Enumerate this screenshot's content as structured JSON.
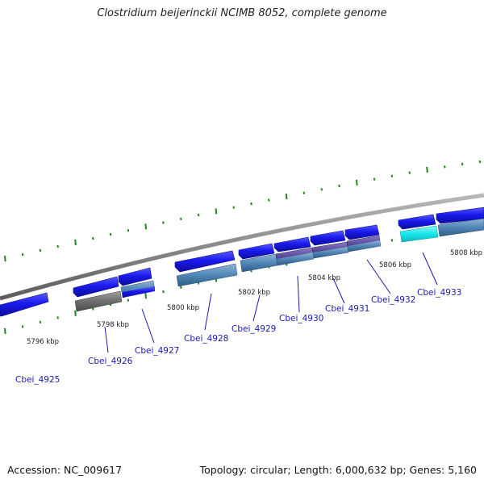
{
  "header": {
    "title": "Clostridium beijerinckii NCIMB 8052, complete genome"
  },
  "footer": {
    "accession": "Accession: NC_009617",
    "summary": "Topology: circular; Length: 6,000,632 bp; Genes: 5,160"
  },
  "scale_labels": [
    "5796 kbp",
    "5798 kbp",
    "5800 kbp",
    "5802 kbp",
    "5804 kbp",
    "5806 kbp",
    "5808 kbp"
  ],
  "gene_labels": [
    "Cbei_4925",
    "Cbei_4926",
    "Cbei_4927",
    "Cbei_4928",
    "Cbei_4929",
    "Cbei_4930",
    "Cbei_4931",
    "Cbei_4932",
    "Cbei_4933"
  ],
  "colors": {
    "gene_blue": "#1a1aee",
    "cds_steel": "#4f86b6",
    "cds_purple": "#5b4a99",
    "cds_gray": "#6e6e6e",
    "cds_cyan": "#18e6ea",
    "backbone": "#8a8a8a",
    "tick_green": "#1a8a1a",
    "label_blue": "#1a1ab0"
  }
}
